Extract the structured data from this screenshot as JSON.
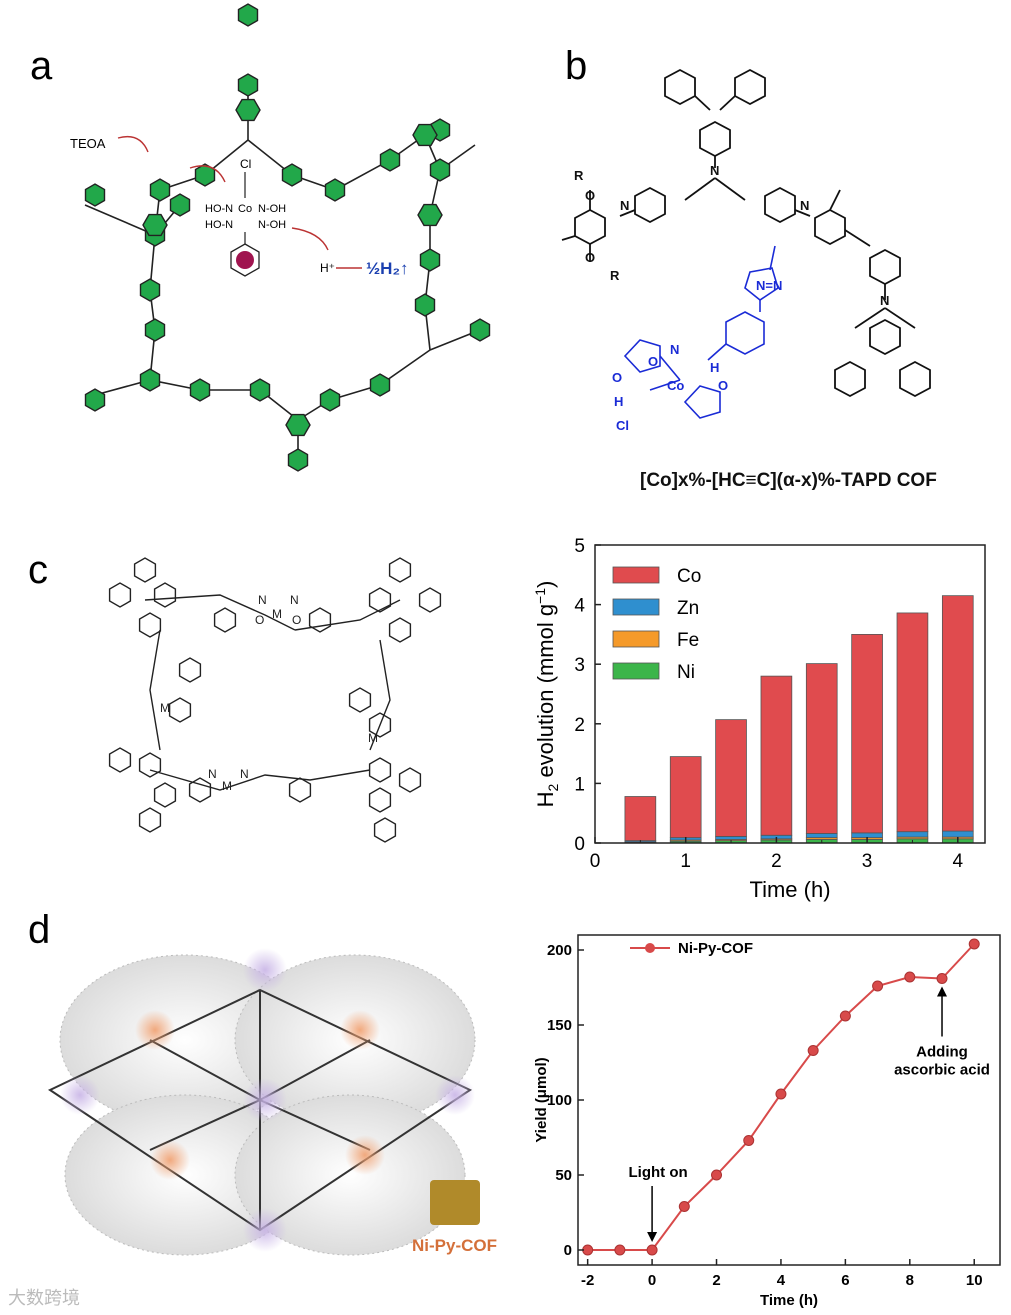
{
  "panels": {
    "a": "a",
    "b": "b",
    "c": "c",
    "d": "d"
  },
  "panel_a": {
    "teoa": "TEOA",
    "cl": "Cl",
    "hplus": "H⁺",
    "h2": "½H₂↑",
    "co": "Co",
    "n": "N",
    "oh": "HO-N",
    "no": "N-OH",
    "ho2": "HO-N",
    "noh2": "N-OH",
    "ho_left": "HO-",
    "n_sym": "N",
    "n_n": "N",
    "tail": "N⁻"
  },
  "panel_b": {
    "caption": "[Co]x%-[HC≡C](α-x)%-TAPD COF",
    "r": "R",
    "n": "N",
    "o": "O",
    "co": "Co",
    "cl": "Cl",
    "h": "H",
    "oh": "O",
    "nn": "N=N"
  },
  "panel_c_scheme": {
    "m": "M",
    "n": "N",
    "o": "O"
  },
  "panel_d_image": {
    "label": "Ni-Py-COF"
  },
  "watermark": "大数跨境",
  "chart_data": [
    {
      "type": "bar",
      "stacked": true,
      "title": "",
      "xlabel": "Time (h)",
      "ylabel": "H2 evolution (mmol g⁻¹)",
      "x": [
        0.5,
        1.0,
        1.5,
        2.0,
        2.5,
        3.0,
        3.5,
        4.0
      ],
      "xlim": [
        0,
        4.3
      ],
      "ylim": [
        0,
        5
      ],
      "xticks": [
        "0",
        "1",
        "2",
        "3",
        "4"
      ],
      "yticks": [
        "0",
        "1",
        "2",
        "3",
        "4",
        "5"
      ],
      "legend": "top-left",
      "series": [
        {
          "name": "Ni",
          "color": "#3cb54a",
          "values": [
            0.01,
            0.03,
            0.04,
            0.05,
            0.06,
            0.06,
            0.07,
            0.07
          ]
        },
        {
          "name": "Fe",
          "color": "#f59a2a",
          "values": [
            0.01,
            0.02,
            0.02,
            0.02,
            0.03,
            0.03,
            0.03,
            0.03
          ]
        },
        {
          "name": "Zn",
          "color": "#2f8fcf",
          "values": [
            0.02,
            0.04,
            0.05,
            0.06,
            0.07,
            0.08,
            0.09,
            0.1
          ]
        },
        {
          "name": "Co",
          "color": "#e04b4e",
          "values": [
            0.74,
            1.36,
            1.96,
            2.67,
            2.85,
            3.33,
            3.67,
            3.95
          ]
        }
      ],
      "legend_order": [
        "Co",
        "Zn",
        "Fe",
        "Ni"
      ]
    },
    {
      "type": "line",
      "title": "",
      "xlabel": "Time (h)",
      "ylabel": "Yield (μmol)",
      "xlim": [
        -2.3,
        10.8
      ],
      "ylim": [
        -10,
        210
      ],
      "xticks": [
        "-2",
        "0",
        "2",
        "4",
        "6",
        "8",
        "10"
      ],
      "yticks": [
        "0",
        "50",
        "100",
        "150",
        "200"
      ],
      "legend": "top-left",
      "color": "#d84a4a",
      "series": [
        {
          "name": "Ni-Py-COF",
          "x": [
            -2,
            -1,
            0,
            1,
            2,
            3,
            4,
            5,
            6,
            7,
            8,
            9,
            10
          ],
          "y": [
            0,
            0,
            0,
            29,
            50,
            73,
            104,
            133,
            156,
            176,
            182,
            181,
            204
          ]
        }
      ],
      "annotations": [
        {
          "text": "Light on",
          "x": 0,
          "y": 0
        },
        {
          "text_lines": [
            "Adding",
            "ascorbic acid"
          ],
          "x": 9,
          "y": 181
        }
      ]
    }
  ]
}
